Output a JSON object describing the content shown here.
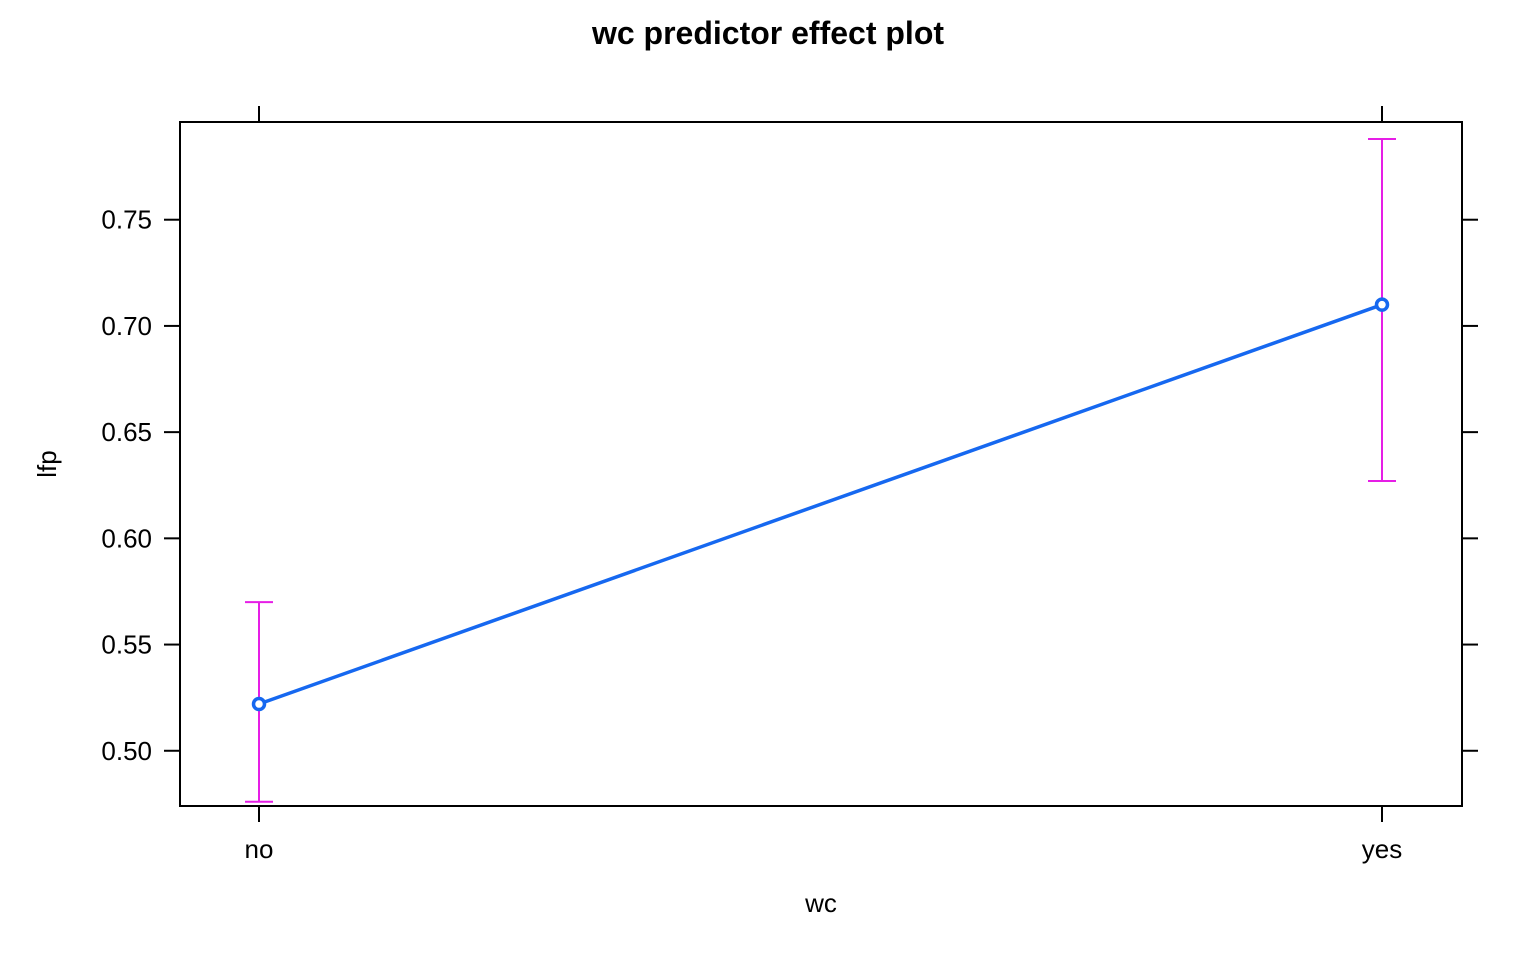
{
  "chart_data": {
    "type": "line",
    "title": "wc predictor effect plot",
    "xlabel": "wc",
    "ylabel": "lfp",
    "categories": [
      "no",
      "yes"
    ],
    "series": [
      {
        "values": [
          0.522,
          0.71
        ],
        "lower": [
          0.476,
          0.627
        ],
        "upper": [
          0.57,
          0.788
        ]
      }
    ],
    "ylim": [
      0.474,
      0.796
    ],
    "yticks": [
      {
        "value": 0.5,
        "label": "0.50"
      },
      {
        "value": 0.55,
        "label": "0.55"
      },
      {
        "value": 0.6,
        "label": "0.60"
      },
      {
        "value": 0.65,
        "label": "0.65"
      },
      {
        "value": 0.7,
        "label": "0.70"
      },
      {
        "value": 0.75,
        "label": "0.75"
      }
    ],
    "grid": false,
    "colors": {
      "line": "#1668f0",
      "error_bar": "#e61ee6",
      "axis": "#000000"
    }
  }
}
